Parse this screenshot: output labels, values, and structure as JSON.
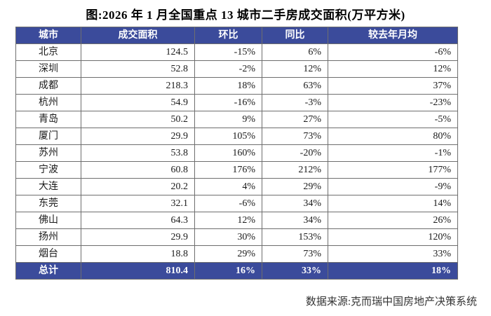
{
  "chart_data": {
    "type": "table",
    "title": "图:2026 年 1 月全国重点 13 城市二手房成交面积(万平方米)",
    "columns": [
      "城市",
      "成交面积",
      "环比",
      "同比",
      "较去年月均"
    ],
    "rows": [
      [
        "北京",
        "124.5",
        "-15%",
        "6%",
        "-6%"
      ],
      [
        "深圳",
        "52.8",
        "-2%",
        "12%",
        "12%"
      ],
      [
        "成都",
        "218.3",
        "18%",
        "63%",
        "37%"
      ],
      [
        "杭州",
        "54.9",
        "-16%",
        "-3%",
        "-23%"
      ],
      [
        "青岛",
        "50.2",
        "9%",
        "27%",
        "-5%"
      ],
      [
        "厦门",
        "29.9",
        "105%",
        "73%",
        "80%"
      ],
      [
        "苏州",
        "53.8",
        "160%",
        "-20%",
        "-1%"
      ],
      [
        "宁波",
        "60.8",
        "176%",
        "212%",
        "177%"
      ],
      [
        "大连",
        "20.2",
        "4%",
        "29%",
        "-9%"
      ],
      [
        "东莞",
        "32.1",
        "-6%",
        "34%",
        "14%"
      ],
      [
        "佛山",
        "64.3",
        "12%",
        "34%",
        "26%"
      ],
      [
        "扬州",
        "29.9",
        "30%",
        "153%",
        "120%"
      ],
      [
        "烟台",
        "18.8",
        "29%",
        "73%",
        "33%"
      ]
    ],
    "total_row": [
      "总计",
      "810.4",
      "16%",
      "33%",
      "18%"
    ],
    "source": "数据来源:克而瑞中国房地产决策系统",
    "unit": "万平方米",
    "legend_position": "none",
    "grid": true
  },
  "colors": {
    "header_bg": "#3b4b9b",
    "header_text": "#ffffff",
    "total_bg": "#3b4b9b",
    "border": "#6e6e6e",
    "body_text": "#1a1a1a"
  }
}
